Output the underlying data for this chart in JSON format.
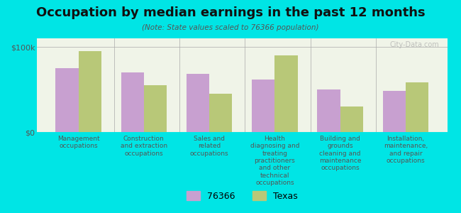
{
  "title": "Occupation by median earnings in the past 12 months",
  "subtitle": "(Note: State values scaled to 76366 population)",
  "background_color": "#00e5e5",
  "plot_bg_color": "#f0f4e8",
  "categories": [
    "Management\noccupations",
    "Construction\nand extraction\noccupations",
    "Sales and\nrelated\noccupations",
    "Health\ndiagnosing and\ntreating\npractitioners\nand other\ntechnical\noccupations",
    "Building and\ngrounds\ncleaning and\nmaintenance\noccupations",
    "Installation,\nmaintenance,\nand repair\noccupations"
  ],
  "values_76366": [
    75000,
    70000,
    68000,
    62000,
    50000,
    48000
  ],
  "values_texas": [
    95000,
    55000,
    45000,
    90000,
    30000,
    58000
  ],
  "color_76366": "#c8a0d0",
  "color_texas": "#b8c878",
  "ylim": [
    0,
    110000
  ],
  "yticks": [
    0,
    100000
  ],
  "ytick_labels": [
    "$0",
    "$100k"
  ],
  "legend_76366": "76366",
  "legend_texas": "Texas",
  "watermark": "City-Data.com",
  "bar_width": 0.35
}
